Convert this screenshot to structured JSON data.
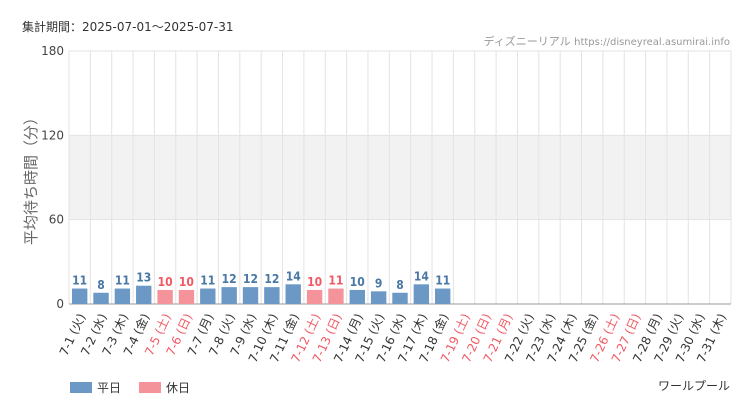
{
  "header": {
    "period": "集計期間：2025-07-01～2025-07-31",
    "site_name": "ディズニーリアル",
    "site_url": "https://disneyreal.asumirai.info"
  },
  "legend": {
    "weekday_label": "平日",
    "holiday_label": "休日"
  },
  "footer": {
    "attraction": "ワールプール"
  },
  "colors": {
    "weekday": "#6b98c4",
    "holiday": "#f4939a",
    "weekday_label": "#4a78a6",
    "holiday_label": "#f05a64",
    "band": "#f2f2f2",
    "grid": "#e3e3e3"
  },
  "chart_data": {
    "type": "bar",
    "title": "",
    "xlabel": "",
    "ylabel": "平均待ち時間（分）",
    "ylim": [
      0,
      180
    ],
    "yticks": [
      0,
      60,
      120,
      180
    ],
    "shaded_band": [
      60,
      120
    ],
    "grid": true,
    "legend_position": "bottom-left",
    "categories": [
      "7-1 (火)",
      "7-2 (水)",
      "7-3 (木)",
      "7-4 (金)",
      "7-5 (土)",
      "7-6 (日)",
      "7-7 (月)",
      "7-8 (火)",
      "7-9 (水)",
      "7-10 (木)",
      "7-11 (金)",
      "7-12 (土)",
      "7-13 (日)",
      "7-14 (月)",
      "7-15 (火)",
      "7-16 (水)",
      "7-17 (木)",
      "7-18 (金)",
      "7-19 (土)",
      "7-20 (日)",
      "7-21 (月)",
      "7-22 (火)",
      "7-23 (水)",
      "7-24 (木)",
      "7-25 (金)",
      "7-26 (土)",
      "7-27 (日)",
      "7-28 (月)",
      "7-29 (火)",
      "7-30 (水)",
      "7-31 (木)"
    ],
    "values": [
      11,
      8,
      11,
      13,
      10,
      10,
      11,
      12,
      12,
      12,
      14,
      10,
      11,
      10,
      9,
      8,
      14,
      11,
      null,
      null,
      null,
      null,
      null,
      null,
      null,
      null,
      null,
      null,
      null,
      null,
      null
    ],
    "day_type": [
      "weekday",
      "weekday",
      "weekday",
      "weekday",
      "holiday",
      "holiday",
      "weekday",
      "weekday",
      "weekday",
      "weekday",
      "weekday",
      "holiday",
      "holiday",
      "weekday",
      "weekday",
      "weekday",
      "weekday",
      "weekday",
      "holiday",
      "holiday",
      "holiday",
      "weekday",
      "weekday",
      "weekday",
      "weekday",
      "holiday",
      "holiday",
      "weekday",
      "weekday",
      "weekday",
      "weekday"
    ],
    "series": [
      {
        "name": "平日"
      },
      {
        "name": "休日"
      }
    ]
  }
}
